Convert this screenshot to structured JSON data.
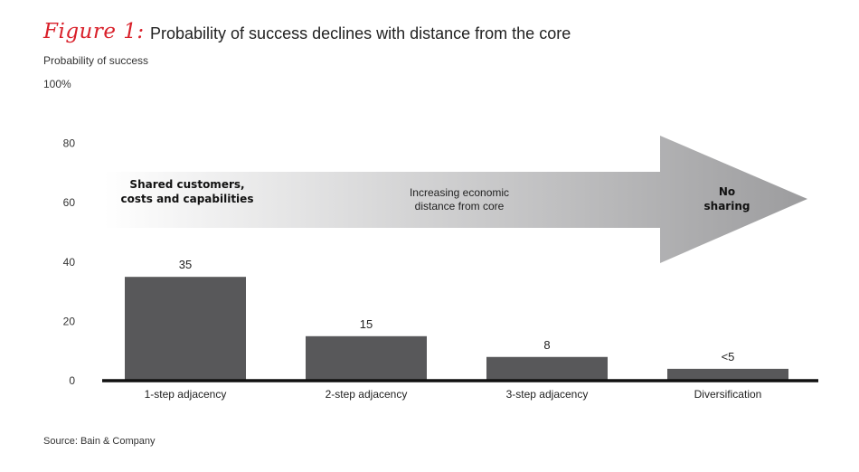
{
  "figure": {
    "label": "Figure 1:",
    "title": "Probability of success declines with distance from the core",
    "source": "Source: Bain & Company"
  },
  "colors": {
    "accent": "#d9202a",
    "bar": "#58585a",
    "axis": "#111111",
    "arrow_start": "#ffffff",
    "arrow_end": "#9c9c9e"
  },
  "chart_data": {
    "type": "bar",
    "ylabel": "Probability of success",
    "ylim": [
      0,
      100
    ],
    "yticks": [
      "0",
      "20",
      "40",
      "60",
      "80",
      "100%"
    ],
    "categories": [
      "1-step adjacency",
      "2-step adjacency",
      "3-step adjacency",
      "Diversification"
    ],
    "values": [
      35,
      15,
      8,
      4
    ],
    "data_labels": [
      "35",
      "15",
      "8",
      "<5"
    ],
    "grid": false,
    "annotations": {
      "arrow_left": [
        "Shared customers,",
        "costs and capabilities"
      ],
      "arrow_middle": [
        "Increasing economic",
        "distance from core"
      ],
      "arrow_right": [
        "No",
        "sharing"
      ]
    }
  }
}
